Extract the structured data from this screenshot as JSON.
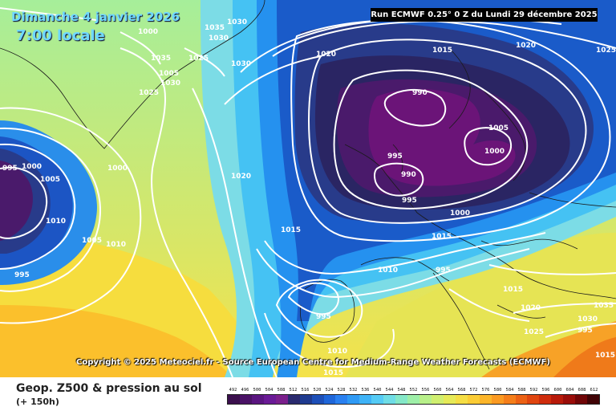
{
  "header": {
    "date": "Dimanche 4 janvier 2026",
    "time": "7:00 locale",
    "run": "Run ECMWF 0.25° 0 Z du Lundi 29 décembre 2025"
  },
  "copyright": "Copyright © 2025 Meteociel.fr - Source European Centre for Medium-Range Weather Forecasts (ECMWF)",
  "footer": {
    "title": "Geop. Z500 & pression au sol",
    "lead": "(+ 150h)"
  },
  "scale": {
    "values": [
      "492",
      "496",
      "500",
      "504",
      "508",
      "512",
      "516",
      "520",
      "524",
      "528",
      "532",
      "536",
      "540",
      "544",
      "548",
      "552",
      "556",
      "560",
      "564",
      "568",
      "572",
      "576",
      "580",
      "584",
      "588",
      "592",
      "596",
      "600",
      "604",
      "608",
      "612"
    ],
    "colors": [
      "#3b0f4d",
      "#4a1266",
      "#5a1580",
      "#6a1a96",
      "#7a1f8c",
      "#2a2a6e",
      "#1e3a8f",
      "#1d4fb8",
      "#1f66d9",
      "#2a80f0",
      "#2f9af5",
      "#3fb3f7",
      "#55cbf5",
      "#6fdde6",
      "#85e8c8",
      "#9eefa8",
      "#b8f08a",
      "#d0ef70",
      "#e6ea58",
      "#f5de44",
      "#fbcc35",
      "#fcb52a",
      "#fb9a22",
      "#f57e1a",
      "#ec6114",
      "#e0450f",
      "#cf2c0c",
      "#b81a0a",
      "#9a0d09",
      "#700607",
      "#400305"
    ]
  },
  "isobars": [
    "1030",
    "1035",
    "1025",
    "1030",
    "1020",
    "1010",
    "1005",
    "1000",
    "995",
    "995",
    "1000",
    "1005",
    "1010",
    "1015",
    "1020",
    "1015",
    "1020",
    "1025",
    "1015",
    "1015",
    "1010",
    "1000",
    "995",
    "990",
    "995",
    "990",
    "995",
    "1000",
    "1005",
    "995",
    "1010",
    "1015",
    "1020",
    "1025",
    "1030",
    "1035",
    "995",
    "1000",
    "1005",
    "1030",
    "1035",
    "1030",
    "1025",
    "1015"
  ],
  "colors": {
    "background": "#ffffff",
    "run_box": "#000000",
    "title_text": "#6fd8ff",
    "isobar": "#ffffff"
  }
}
